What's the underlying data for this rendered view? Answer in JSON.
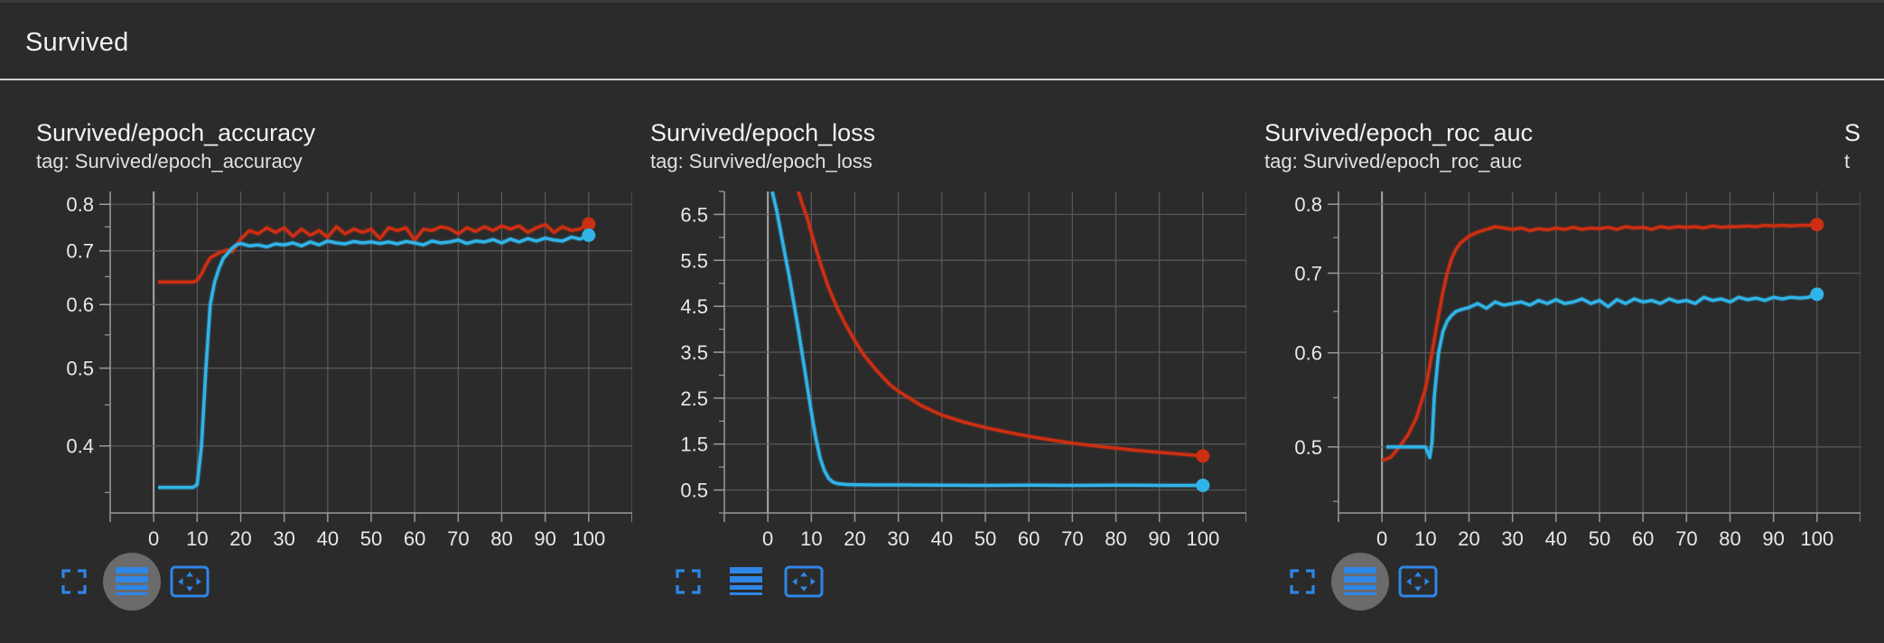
{
  "section": {
    "title": "Survived"
  },
  "colors": {
    "red": "#cc2f12",
    "blue": "#30b4e8",
    "grid": "#5a5a5a",
    "axis": "#9a9a9a",
    "icon": "#2e86e6"
  },
  "icons": [
    "fullscreen-icon",
    "log-scale-icon",
    "fit-domain-icon"
  ],
  "chart_data": [
    {
      "type": "line",
      "title": "Survived/epoch_accuracy",
      "tag": "tag: Survived/epoch_accuracy",
      "xlim": [
        -10,
        110
      ],
      "ylim": [
        0.33,
        0.83
      ],
      "yscale": "log",
      "x_ticks": [
        "0",
        "10",
        "20",
        "30",
        "40",
        "50",
        "60",
        "70",
        "80",
        "90",
        "100"
      ],
      "y_ticks": [
        0.8,
        0.7,
        0.6,
        0.5,
        0.4
      ],
      "y_tick_labels": [
        "0.8",
        "0.7",
        "0.6",
        "0.5",
        "0.4"
      ],
      "grid": true,
      "legend": "none",
      "active_tool": 1,
      "series": [
        {
          "color": "red",
          "x": [
            1,
            5,
            9,
            10,
            11,
            12,
            13,
            15,
            17,
            18,
            20,
            22,
            24,
            26,
            28,
            30,
            32,
            34,
            36,
            38,
            40,
            42,
            44,
            46,
            48,
            50,
            52,
            54,
            56,
            58,
            60,
            62,
            64,
            66,
            68,
            70,
            72,
            74,
            76,
            78,
            80,
            82,
            84,
            86,
            88,
            90,
            92,
            94,
            96,
            98,
            100
          ],
          "y": [
            0.64,
            0.64,
            0.64,
            0.643,
            0.655,
            0.672,
            0.686,
            0.696,
            0.702,
            0.698,
            0.724,
            0.742,
            0.735,
            0.748,
            0.738,
            0.748,
            0.73,
            0.745,
            0.732,
            0.742,
            0.728,
            0.75,
            0.735,
            0.745,
            0.738,
            0.745,
            0.725,
            0.748,
            0.742,
            0.748,
            0.722,
            0.745,
            0.742,
            0.75,
            0.746,
            0.735,
            0.748,
            0.74,
            0.75,
            0.742,
            0.752,
            0.745,
            0.752,
            0.738,
            0.748,
            0.755,
            0.738,
            0.75,
            0.742,
            0.745,
            0.756
          ]
        },
        {
          "color": "blue",
          "x": [
            1,
            5,
            9,
            10,
            11,
            12,
            13,
            14,
            15,
            16,
            17,
            18,
            19,
            20,
            22,
            24,
            26,
            28,
            30,
            32,
            34,
            36,
            38,
            40,
            42,
            44,
            46,
            48,
            50,
            52,
            54,
            56,
            58,
            60,
            62,
            64,
            66,
            68,
            70,
            72,
            74,
            76,
            78,
            80,
            82,
            84,
            86,
            88,
            90,
            92,
            94,
            96,
            98,
            100
          ],
          "y": [
            0.355,
            0.355,
            0.355,
            0.358,
            0.4,
            0.5,
            0.6,
            0.64,
            0.665,
            0.685,
            0.695,
            0.705,
            0.712,
            0.715,
            0.71,
            0.712,
            0.708,
            0.714,
            0.712,
            0.716,
            0.71,
            0.718,
            0.712,
            0.72,
            0.716,
            0.714,
            0.719,
            0.716,
            0.718,
            0.715,
            0.718,
            0.714,
            0.719,
            0.716,
            0.712,
            0.72,
            0.716,
            0.718,
            0.722,
            0.715,
            0.72,
            0.718,
            0.723,
            0.716,
            0.724,
            0.718,
            0.725,
            0.72,
            0.726,
            0.722,
            0.72,
            0.728,
            0.724,
            0.732
          ]
        }
      ]
    },
    {
      "type": "line",
      "title": "Survived/epoch_loss",
      "tag": "tag: Survived/epoch_loss",
      "xlim": [
        -10,
        110
      ],
      "ylim": [
        0,
        7
      ],
      "yscale": "linear",
      "x_ticks": [
        "0",
        "10",
        "20",
        "30",
        "40",
        "50",
        "60",
        "70",
        "80",
        "90",
        "100"
      ],
      "y_ticks": [
        6.5,
        5.5,
        4.5,
        3.5,
        2.5,
        1.5,
        0.5
      ],
      "y_tick_labels": [
        "6.5",
        "5.5",
        "4.5",
        "3.5",
        "2.5",
        "1.5",
        "0.5"
      ],
      "grid": true,
      "legend": "none",
      "active_tool": -1,
      "series": [
        {
          "color": "red",
          "x": [
            7,
            8,
            9,
            10,
            12,
            14,
            16,
            18,
            20,
            22,
            25,
            28,
            30,
            35,
            40,
            45,
            50,
            55,
            60,
            65,
            70,
            75,
            80,
            85,
            90,
            95,
            100
          ],
          "y": [
            7.0,
            6.7,
            6.45,
            6.1,
            5.45,
            4.9,
            4.45,
            4.08,
            3.75,
            3.45,
            3.1,
            2.8,
            2.65,
            2.35,
            2.13,
            1.98,
            1.86,
            1.76,
            1.67,
            1.59,
            1.52,
            1.46,
            1.41,
            1.36,
            1.32,
            1.28,
            1.24
          ]
        },
        {
          "color": "blue",
          "x": [
            1,
            2,
            3,
            4,
            5,
            6,
            7,
            8,
            9,
            10,
            11,
            12,
            13,
            14,
            15,
            16,
            18,
            20,
            25,
            30,
            40,
            50,
            60,
            70,
            80,
            90,
            100
          ],
          "y": [
            7.0,
            6.6,
            6.1,
            5.6,
            5.1,
            4.55,
            4.0,
            3.4,
            2.8,
            2.2,
            1.65,
            1.2,
            0.92,
            0.75,
            0.67,
            0.64,
            0.62,
            0.615,
            0.61,
            0.61,
            0.605,
            0.6,
            0.605,
            0.6,
            0.605,
            0.6,
            0.6
          ]
        }
      ]
    },
    {
      "type": "line",
      "title": "Survived/epoch_roc_auc",
      "tag": "tag: Survived/epoch_roc_auc",
      "xlim": [
        -10,
        110
      ],
      "ylim": [
        0.44,
        0.82
      ],
      "yscale": "log",
      "x_ticks": [
        "0",
        "10",
        "20",
        "30",
        "40",
        "50",
        "60",
        "70",
        "80",
        "90",
        "100"
      ],
      "y_ticks": [
        0.8,
        0.7,
        0.6,
        0.5
      ],
      "y_tick_labels": [
        "0.8",
        "0.7",
        "0.6",
        "0.5"
      ],
      "grid": true,
      "legend": "none",
      "active_tool": 1,
      "series": [
        {
          "color": "red",
          "x": [
            0,
            2,
            4,
            6,
            8,
            10,
            11,
            12,
            13,
            14,
            15,
            16,
            17,
            18,
            20,
            22,
            24,
            26,
            28,
            30,
            32,
            34,
            36,
            38,
            40,
            42,
            44,
            46,
            48,
            50,
            52,
            54,
            56,
            58,
            60,
            62,
            64,
            66,
            68,
            70,
            72,
            74,
            76,
            78,
            80,
            82,
            84,
            86,
            88,
            90,
            92,
            94,
            96,
            98,
            100
          ],
          "y": [
            0.487,
            0.49,
            0.5,
            0.512,
            0.53,
            0.56,
            0.585,
            0.615,
            0.645,
            0.675,
            0.7,
            0.72,
            0.733,
            0.742,
            0.752,
            0.758,
            0.762,
            0.766,
            0.764,
            0.762,
            0.764,
            0.76,
            0.763,
            0.761,
            0.764,
            0.762,
            0.765,
            0.762,
            0.764,
            0.763,
            0.765,
            0.762,
            0.766,
            0.764,
            0.765,
            0.762,
            0.766,
            0.764,
            0.766,
            0.765,
            0.766,
            0.764,
            0.767,
            0.765,
            0.766,
            0.766,
            0.767,
            0.766,
            0.768,
            0.767,
            0.768,
            0.767,
            0.768,
            0.768,
            0.769
          ]
        },
        {
          "color": "blue",
          "x": [
            1,
            5,
            9,
            10,
            11,
            11.5,
            12,
            13,
            14,
            15,
            16,
            17,
            18,
            20,
            22,
            24,
            26,
            28,
            30,
            32,
            34,
            36,
            38,
            40,
            42,
            44,
            46,
            48,
            50,
            52,
            54,
            56,
            58,
            60,
            62,
            64,
            66,
            68,
            70,
            72,
            74,
            76,
            78,
            80,
            82,
            84,
            86,
            88,
            90,
            92,
            94,
            96,
            98,
            100
          ],
          "y": [
            0.5,
            0.5,
            0.5,
            0.5,
            0.49,
            0.505,
            0.55,
            0.6,
            0.625,
            0.638,
            0.645,
            0.65,
            0.652,
            0.655,
            0.66,
            0.654,
            0.662,
            0.658,
            0.66,
            0.662,
            0.658,
            0.664,
            0.66,
            0.665,
            0.66,
            0.662,
            0.666,
            0.66,
            0.664,
            0.656,
            0.665,
            0.66,
            0.666,
            0.662,
            0.664,
            0.66,
            0.666,
            0.662,
            0.664,
            0.66,
            0.668,
            0.664,
            0.666,
            0.662,
            0.668,
            0.665,
            0.667,
            0.664,
            0.668,
            0.666,
            0.668,
            0.667,
            0.668,
            0.672
          ]
        }
      ]
    }
  ],
  "cutoff_card": {
    "title": "S",
    "tag": "t"
  }
}
